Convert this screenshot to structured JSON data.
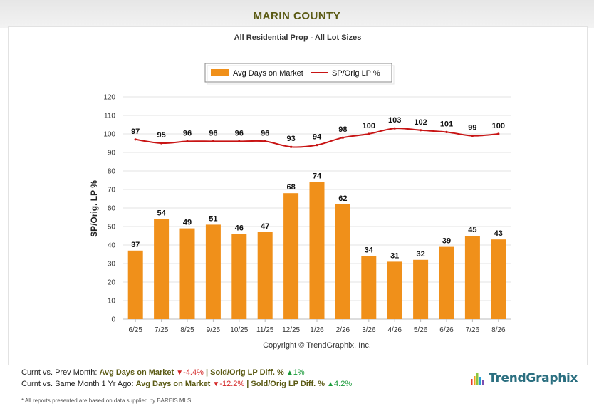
{
  "header": {
    "title": "MARIN COUNTY"
  },
  "chart_data": {
    "type": "bar",
    "subtitle": "All Residential Prop - All Lot Sizes",
    "categories": [
      "6/25",
      "7/25",
      "8/25",
      "9/25",
      "10/25",
      "11/25",
      "12/25",
      "1/26",
      "2/26",
      "3/26",
      "4/26",
      "5/26",
      "6/26",
      "7/26",
      "8/26"
    ],
    "series": [
      {
        "name": "Avg Days on Market",
        "type": "bar",
        "color": "#f0901a",
        "values": [
          37,
          54,
          49,
          51,
          46,
          47,
          68,
          74,
          62,
          34,
          31,
          32,
          39,
          45,
          43
        ]
      },
      {
        "name": "SP/Orig LP %",
        "type": "line",
        "color": "#c81414",
        "values": [
          97,
          95,
          96,
          96,
          96,
          96,
          93,
          94,
          98,
          100,
          103,
          102,
          101,
          99,
          100
        ]
      }
    ],
    "ylabel": "SP/Orig. LP %",
    "ylim": [
      0,
      120
    ],
    "yticks": [
      0,
      10,
      20,
      30,
      40,
      50,
      60,
      70,
      80,
      90,
      100,
      110,
      120
    ],
    "grid": true,
    "legend": "top-center",
    "credit": "Copyright © TrendGraphix, Inc."
  },
  "footer": {
    "row1": {
      "prefix": "Curnt vs. Prev Month:",
      "metric1": "Avg Days on Market",
      "value1": "-4.4%",
      "sep": "| Sold/Orig LP Diff. %",
      "value2": "1%"
    },
    "row2": {
      "prefix": "Curnt vs. Same Month 1 Yr Ago:",
      "metric1": "Avg Days on Market",
      "value1": "-12.2%",
      "sep": "| Sold/Orig LP Diff. %",
      "value2": "4.2%"
    },
    "disclaimer": "* All reports presented are based on data supplied by BAREIS MLS.",
    "brand": "TrendGraphix"
  }
}
